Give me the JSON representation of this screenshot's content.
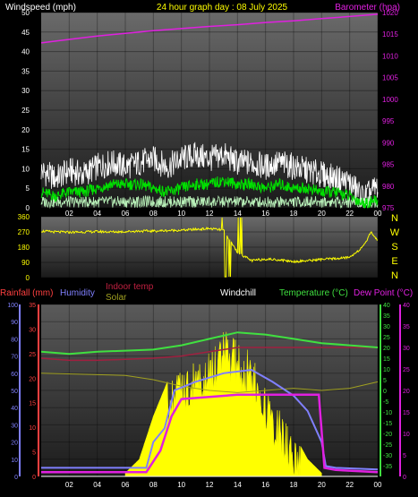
{
  "header": {
    "left": "Windspeed (mph)",
    "center": "24 hour graph day : 08 July 2025",
    "right": "Barometer (hpa)"
  },
  "legend": {
    "rainfall": "Rainfall (mm)",
    "humidity": "Humidity",
    "indoor_temp": "Indoor temp",
    "solar": "Solar",
    "windchill": "Windchill",
    "temperature": "Temperature (°C)",
    "dew_point": "Dew Point (°C)"
  },
  "colors": {
    "wind_gust": "#ffffff",
    "wind_avg": "#00e000",
    "wind_low": "#b8f0b8",
    "barometer": "#e020e0",
    "direction": "#ffff00",
    "temperature": "#40e040",
    "indoor_temp": "#a02040",
    "solar": "#ffff00",
    "solar_line": "#a0a020",
    "humidity": "#8080ff",
    "dew_point": "#e020e0",
    "windchill": "#ffffff",
    "rainfall": "#ff4040"
  },
  "chart_data": [
    {
      "type": "line",
      "title": "24 hour graph day : 08 July 2025",
      "x_ticks": [
        "02",
        "04",
        "06",
        "08",
        "10",
        "12",
        "14",
        "16",
        "18",
        "20",
        "22",
        "00"
      ],
      "xlim_hours": [
        0,
        24
      ],
      "ylabel_left": "Windspeed (mph)",
      "ylim_left": [
        0,
        50
      ],
      "yticks_left": [
        0,
        5,
        10,
        15,
        20,
        25,
        30,
        35,
        40,
        45,
        50
      ],
      "ylabel_right": "Barometer (hpa)",
      "ylim_right": [
        975,
        1020
      ],
      "yticks_right": [
        975,
        980,
        985,
        990,
        995,
        1000,
        1005,
        1010,
        1015,
        1020
      ],
      "series": [
        {
          "name": "Gust",
          "axis": "left",
          "x": [
            0,
            1,
            2,
            3,
            4,
            5,
            6,
            7,
            8,
            9,
            10,
            11,
            12,
            13,
            14,
            15,
            16,
            17,
            18,
            19,
            20,
            21,
            22,
            23,
            24
          ],
          "values": [
            10,
            8,
            10,
            9,
            11,
            12,
            11,
            12,
            13,
            11,
            13,
            14,
            13,
            14,
            12,
            12,
            11,
            12,
            11,
            10,
            9,
            8,
            7,
            3,
            6
          ]
        },
        {
          "name": "Average",
          "axis": "left",
          "x": [
            0,
            1,
            2,
            3,
            4,
            5,
            6,
            7,
            8,
            9,
            10,
            11,
            12,
            13,
            14,
            15,
            16,
            17,
            18,
            19,
            20,
            21,
            22,
            23,
            24
          ],
          "values": [
            4,
            3,
            4,
            4,
            5,
            6,
            6,
            6,
            5,
            4,
            5,
            6,
            6,
            7,
            6,
            6,
            5,
            6,
            5,
            5,
            4,
            4,
            3,
            1,
            2
          ]
        },
        {
          "name": "Barometer",
          "axis": "right",
          "x": [
            0,
            2,
            4,
            6,
            8,
            10,
            12,
            14,
            16,
            18,
            20,
            22,
            24
          ],
          "values": [
            1013.0,
            1013.8,
            1014.6,
            1015.2,
            1015.8,
            1016.3,
            1016.8,
            1017.2,
            1017.7,
            1018.1,
            1018.6,
            1019.1,
            1019.6
          ]
        }
      ]
    },
    {
      "type": "line",
      "x_ticks": [
        "02",
        "04",
        "06",
        "08",
        "10",
        "12",
        "14",
        "16",
        "18",
        "20",
        "22",
        "00"
      ],
      "ylim": [
        0,
        360
      ],
      "yticks": [
        0,
        90,
        180,
        270,
        360
      ],
      "compass": [
        "N",
        "W",
        "S",
        "E",
        "N"
      ],
      "series": [
        {
          "name": "Wind direction",
          "x": [
            0,
            1,
            2,
            3,
            4,
            5,
            6,
            7,
            8,
            9,
            10,
            11,
            12,
            13,
            14,
            15,
            16,
            17,
            18,
            19,
            20,
            21,
            22,
            23,
            23.5,
            24
          ],
          "values": [
            275,
            270,
            268,
            270,
            272,
            270,
            272,
            275,
            275,
            278,
            280,
            285,
            290,
            280,
            150,
            100,
            110,
            105,
            95,
            100,
            108,
            112,
            120,
            185,
            270,
            220
          ]
        }
      ]
    },
    {
      "type": "line",
      "x_ticks": [
        "02",
        "04",
        "06",
        "08",
        "10",
        "12",
        "14",
        "16",
        "18",
        "20",
        "22",
        "00"
      ],
      "axis_humidity": {
        "ylim": [
          0,
          100
        ],
        "yticks": [
          0,
          10,
          20,
          30,
          40,
          50,
          60,
          70,
          80,
          90,
          100
        ]
      },
      "axis_rainfall": {
        "ylim": [
          0,
          35
        ],
        "yticks": [
          0,
          5,
          10,
          15,
          20,
          25,
          30,
          35
        ]
      },
      "axis_temperature": {
        "ylim": [
          -40,
          40
        ],
        "yticks": [
          -35,
          -30,
          -25,
          -20,
          -15,
          -10,
          -5,
          0,
          5,
          10,
          15,
          20,
          25,
          30,
          35,
          40
        ]
      },
      "axis_dewpoint": {
        "ylim": [
          0,
          40
        ],
        "yticks": [
          0,
          5,
          10,
          15,
          20,
          25,
          30,
          35,
          40
        ]
      },
      "series": [
        {
          "name": "Temperature",
          "axis": "temperature",
          "x": [
            0,
            2,
            4,
            6,
            8,
            10,
            12,
            14,
            16,
            18,
            20,
            22,
            24
          ],
          "values": [
            18,
            17,
            18,
            18.5,
            19,
            21,
            24,
            27,
            26,
            24,
            22,
            21,
            20
          ]
        },
        {
          "name": "Indoor temp",
          "axis": "temperature",
          "x": [
            0,
            2,
            4,
            6,
            8,
            10,
            12,
            14,
            16,
            18,
            20,
            22,
            24
          ],
          "values": [
            15,
            14,
            14,
            14.5,
            15,
            16,
            18,
            20,
            20,
            20,
            20,
            20,
            20
          ]
        },
        {
          "name": "Dew Point",
          "axis": "dewpoint",
          "x": [
            0,
            7.5,
            8.5,
            9.3,
            10,
            12,
            14,
            16,
            18,
            19.8,
            20.2,
            21,
            24
          ],
          "values": [
            1,
            1,
            6,
            14,
            18,
            18.5,
            19,
            19,
            19,
            19,
            2,
            1.5,
            1
          ]
        },
        {
          "name": "Humidity",
          "axis": "humidity",
          "x": [
            0,
            7.5,
            8,
            8.8,
            9.5,
            11,
            13,
            15,
            16.5,
            18,
            19,
            20,
            20.3,
            21,
            24
          ],
          "values": [
            5,
            5,
            20,
            28,
            50,
            55,
            60,
            62,
            55,
            47,
            38,
            20,
            6,
            5,
            4
          ]
        },
        {
          "name": "Solar",
          "axis": "temperature",
          "x": [
            0,
            6,
            8,
            10,
            12,
            14,
            16,
            18,
            20,
            22,
            24
          ],
          "values": [
            8,
            7,
            5,
            2,
            0,
            -1,
            0,
            1,
            0,
            1,
            4
          ]
        },
        {
          "name": "Windchill",
          "axis": "temperature",
          "x": [
            0,
            24
          ],
          "values": [
            -40,
            -40
          ]
        }
      ],
      "solar_area": {
        "x": [
          6,
          7,
          8,
          9,
          10,
          11,
          12,
          13,
          14,
          15,
          16,
          17,
          18,
          19,
          20
        ],
        "values": [
          0.02,
          0.1,
          0.35,
          0.55,
          0.62,
          0.68,
          0.72,
          0.88,
          0.78,
          0.72,
          0.52,
          0.4,
          0.25,
          0.1,
          0.02
        ]
      }
    }
  ]
}
